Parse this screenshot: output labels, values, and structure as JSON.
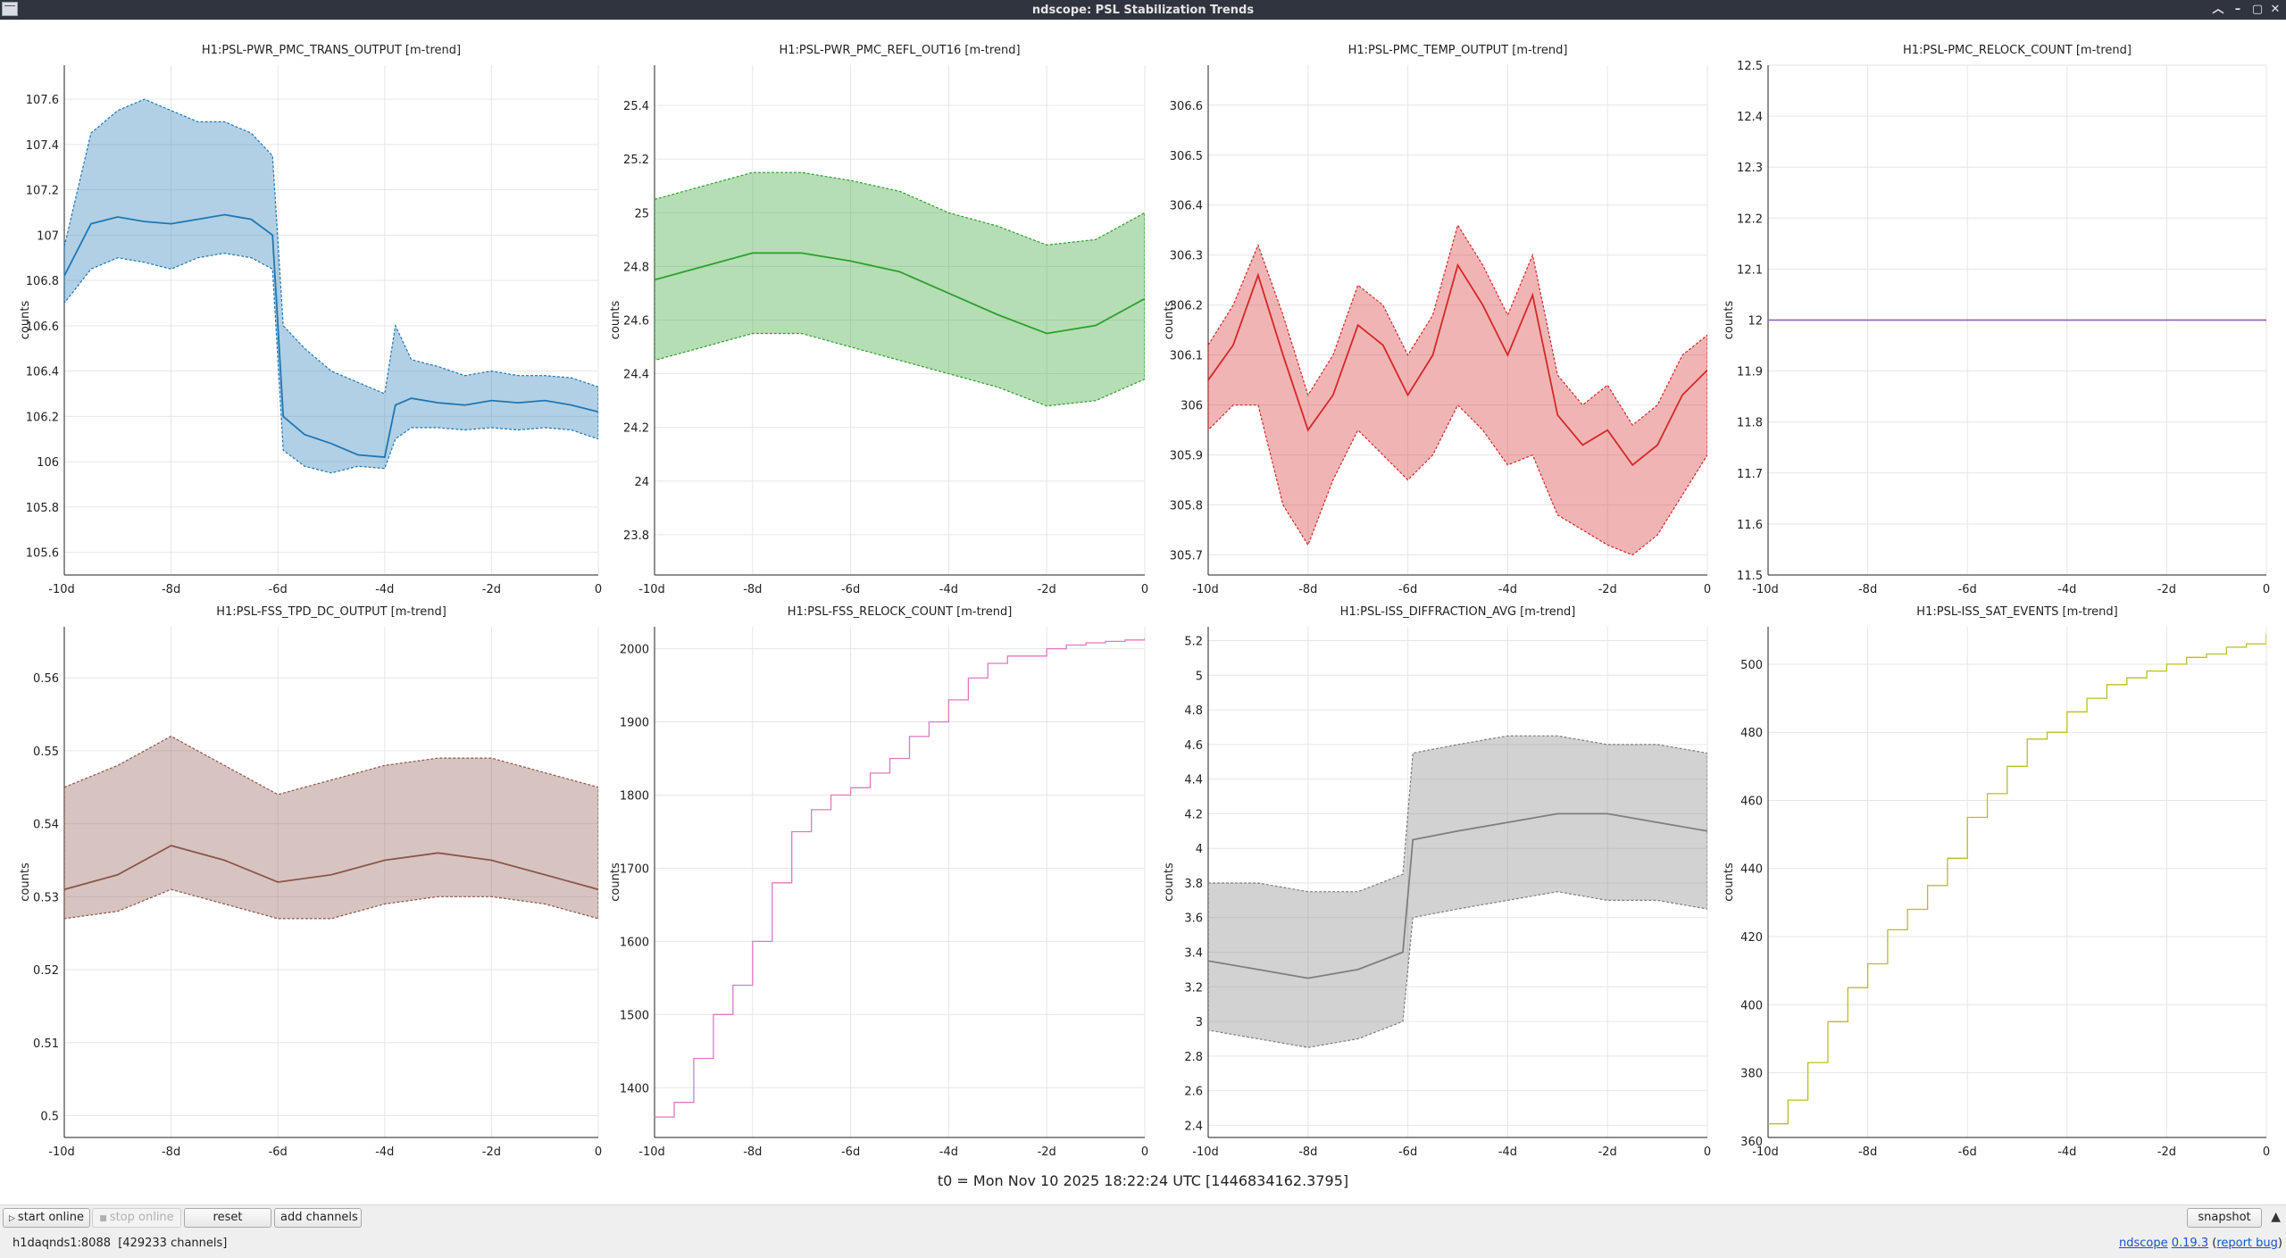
{
  "window": {
    "title": "ndscope: PSL Stabilization Trends",
    "buttons": [
      "︿",
      "–",
      "▢",
      "✕"
    ]
  },
  "colors": {
    "blue": "#1f77b4",
    "green": "#2ca02c",
    "red": "#d62728",
    "purple": "#9467bd",
    "brown": "#8c564b",
    "pink": "#e377c2",
    "gray": "#7f7f7f",
    "olive": "#bcbd22",
    "grid": "#e6e6e6",
    "axis": "#222222"
  },
  "x_ticks": [
    "-10d",
    "-8d",
    "-6d",
    "-4d",
    "-2d",
    "0"
  ],
  "chart_data": [
    {
      "type": "line",
      "title": "H1:PSL-PWR_PMC_TRANS_OUTPUT [m-trend]",
      "ylabel": "counts",
      "color": "blue",
      "xlim": [
        -10,
        0
      ],
      "ylim": [
        105.5,
        107.75
      ],
      "yticks": [
        105.6,
        105.8,
        106,
        106.2,
        106.4,
        106.6,
        106.8,
        107,
        107.2,
        107.4,
        107.6
      ],
      "x": [
        -10,
        -9.5,
        -9,
        -8.5,
        -8,
        -7.5,
        -7,
        -6.5,
        -6.1,
        -5.9,
        -5.5,
        -5,
        -4.5,
        -4,
        -3.8,
        -3.5,
        -3,
        -2.5,
        -2,
        -1.5,
        -1,
        -0.5,
        0
      ],
      "mean": [
        106.82,
        107.05,
        107.08,
        107.06,
        107.05,
        107.07,
        107.09,
        107.07,
        107.0,
        106.2,
        106.12,
        106.08,
        106.03,
        106.02,
        106.25,
        106.28,
        106.26,
        106.25,
        106.27,
        106.26,
        106.27,
        106.25,
        106.22
      ],
      "max": [
        106.95,
        107.45,
        107.55,
        107.6,
        107.55,
        107.5,
        107.5,
        107.45,
        107.35,
        106.6,
        106.5,
        106.4,
        106.35,
        106.3,
        106.6,
        106.45,
        106.42,
        106.38,
        106.4,
        106.38,
        106.38,
        106.37,
        106.33
      ],
      "min": [
        106.7,
        106.85,
        106.9,
        106.88,
        106.85,
        106.9,
        106.92,
        106.9,
        106.85,
        106.05,
        105.98,
        105.95,
        105.98,
        105.97,
        106.1,
        106.15,
        106.15,
        106.14,
        106.15,
        106.14,
        106.15,
        106.14,
        106.1
      ]
    },
    {
      "type": "line",
      "title": "H1:PSL-PWR_PMC_REFL_OUT16 [m-trend]",
      "ylabel": "counts",
      "color": "green",
      "xlim": [
        -10,
        0
      ],
      "ylim": [
        23.65,
        25.55
      ],
      "yticks": [
        23.8,
        24,
        24.2,
        24.4,
        24.6,
        24.8,
        25,
        25.2,
        25.4
      ],
      "x": [
        -10,
        -9,
        -8,
        -7,
        -6,
        -5,
        -4,
        -3,
        -2,
        -1,
        0
      ],
      "mean": [
        24.75,
        24.8,
        24.85,
        24.85,
        24.82,
        24.78,
        24.7,
        24.62,
        24.55,
        24.58,
        24.68
      ],
      "max": [
        25.05,
        25.1,
        25.15,
        25.15,
        25.12,
        25.08,
        25.0,
        24.95,
        24.88,
        24.9,
        25.0
      ],
      "min": [
        24.45,
        24.5,
        24.55,
        24.55,
        24.5,
        24.45,
        24.4,
        24.35,
        24.28,
        24.3,
        24.38
      ]
    },
    {
      "type": "line",
      "title": "H1:PSL-PMC_TEMP_OUTPUT [m-trend]",
      "ylabel": "counts",
      "color": "red",
      "xlim": [
        -10,
        0
      ],
      "ylim": [
        305.66,
        306.68
      ],
      "yticks": [
        305.7,
        305.8,
        305.9,
        306,
        306.1,
        306.2,
        306.3,
        306.4,
        306.5,
        306.6
      ],
      "x": [
        -10,
        -9.5,
        -9,
        -8.5,
        -8,
        -7.5,
        -7,
        -6.5,
        -6,
        -5.5,
        -5,
        -4.5,
        -4,
        -3.5,
        -3,
        -2.5,
        -2,
        -1.5,
        -1,
        -0.5,
        0
      ],
      "mean": [
        306.05,
        306.12,
        306.26,
        306.1,
        305.95,
        306.02,
        306.16,
        306.12,
        306.02,
        306.1,
        306.28,
        306.2,
        306.1,
        306.22,
        305.98,
        305.92,
        305.95,
        305.88,
        305.92,
        306.02,
        306.07
      ],
      "max": [
        306.12,
        306.2,
        306.32,
        306.18,
        306.02,
        306.1,
        306.24,
        306.2,
        306.1,
        306.18,
        306.36,
        306.28,
        306.18,
        306.3,
        306.06,
        306.0,
        306.04,
        305.96,
        306.0,
        306.1,
        306.14
      ],
      "min": [
        305.95,
        306.0,
        306.0,
        305.8,
        305.72,
        305.85,
        305.95,
        305.9,
        305.85,
        305.9,
        306.0,
        305.95,
        305.88,
        305.9,
        305.78,
        305.75,
        305.72,
        305.7,
        305.74,
        305.82,
        305.9
      ]
    },
    {
      "type": "line",
      "title": "H1:PSL-PMC_RELOCK_COUNT [m-trend]",
      "ylabel": "counts",
      "color": "purple",
      "xlim": [
        -10,
        0
      ],
      "ylim": [
        11.5,
        12.5
      ],
      "yticks": [
        11.5,
        11.6,
        11.7,
        11.8,
        11.9,
        12,
        12.1,
        12.2,
        12.3,
        12.4,
        12.5
      ],
      "x": [
        -10,
        0
      ],
      "mean": [
        12,
        12
      ]
    },
    {
      "type": "line",
      "title": "H1:PSL-FSS_TPD_DC_OUTPUT [m-trend]",
      "ylabel": "counts",
      "color": "brown",
      "xlim": [
        -10,
        0
      ],
      "ylim": [
        0.497,
        0.567
      ],
      "yticks": [
        0.5,
        0.51,
        0.52,
        0.53,
        0.54,
        0.55,
        0.56
      ],
      "x": [
        -10,
        -9,
        -8,
        -7,
        -6,
        -5,
        -4,
        -3,
        -2,
        -1,
        0
      ],
      "mean": [
        0.531,
        0.533,
        0.537,
        0.535,
        0.532,
        0.533,
        0.535,
        0.536,
        0.535,
        0.533,
        0.531
      ],
      "max": [
        0.545,
        0.548,
        0.552,
        0.548,
        0.544,
        0.546,
        0.548,
        0.549,
        0.549,
        0.547,
        0.545
      ],
      "min": [
        0.527,
        0.528,
        0.531,
        0.529,
        0.527,
        0.527,
        0.529,
        0.53,
        0.53,
        0.529,
        0.527
      ]
    },
    {
      "type": "line",
      "step": true,
      "title": "H1:PSL-FSS_RELOCK_COUNT [m-trend]",
      "ylabel": "counts",
      "color": "pink",
      "xlim": [
        -10,
        0
      ],
      "ylim": [
        1332,
        2030
      ],
      "yticks": [
        1400,
        1500,
        1600,
        1700,
        1800,
        1900,
        2000
      ],
      "x": [
        -10,
        -9.6,
        -9.2,
        -8.8,
        -8.4,
        -8.0,
        -7.6,
        -7.2,
        -6.8,
        -6.4,
        -6.0,
        -5.6,
        -5.2,
        -4.8,
        -4.4,
        -4.0,
        -3.6,
        -3.2,
        -2.8,
        -2.4,
        -2.0,
        -1.6,
        -1.2,
        -0.8,
        -0.4,
        0
      ],
      "mean": [
        1360,
        1380,
        1440,
        1500,
        1540,
        1600,
        1680,
        1750,
        1780,
        1800,
        1810,
        1830,
        1850,
        1880,
        1900,
        1930,
        1960,
        1980,
        1990,
        1990,
        2000,
        2005,
        2008,
        2010,
        2012,
        2015
      ]
    },
    {
      "type": "line",
      "title": "H1:PSL-ISS_DIFFRACTION_AVG [m-trend]",
      "ylabel": "counts",
      "color": "gray",
      "xlim": [
        -10,
        0
      ],
      "ylim": [
        2.33,
        5.28
      ],
      "yticks": [
        2.4,
        2.6,
        2.8,
        3,
        3.2,
        3.4,
        3.6,
        3.8,
        4,
        4.2,
        4.4,
        4.6,
        4.8,
        5,
        5.2
      ],
      "x": [
        -10,
        -9,
        -8,
        -7,
        -6.1,
        -5.9,
        -5,
        -4,
        -3,
        -2,
        -1,
        0
      ],
      "mean": [
        3.35,
        3.3,
        3.25,
        3.3,
        3.4,
        4.05,
        4.1,
        4.15,
        4.2,
        4.2,
        4.15,
        4.1
      ],
      "max": [
        3.8,
        3.8,
        3.75,
        3.75,
        3.85,
        4.55,
        4.6,
        4.65,
        4.65,
        4.6,
        4.6,
        4.55
      ],
      "min": [
        2.95,
        2.9,
        2.85,
        2.9,
        3.0,
        3.6,
        3.65,
        3.7,
        3.75,
        3.7,
        3.7,
        3.65
      ]
    },
    {
      "type": "line",
      "step": true,
      "title": "H1:PSL-ISS_SAT_EVENTS [m-trend]",
      "ylabel": "counts",
      "color": "olive",
      "xlim": [
        -10,
        0
      ],
      "ylim": [
        361,
        511
      ],
      "yticks": [
        360,
        380,
        400,
        420,
        440,
        460,
        480,
        500
      ],
      "x": [
        -10,
        -9.6,
        -9.2,
        -8.8,
        -8.4,
        -8.0,
        -7.6,
        -7.2,
        -6.8,
        -6.4,
        -6.0,
        -5.6,
        -5.2,
        -4.8,
        -4.4,
        -4.0,
        -3.6,
        -3.2,
        -2.8,
        -2.4,
        -2.0,
        -1.6,
        -1.2,
        -0.8,
        -0.4,
        0
      ],
      "mean": [
        365,
        372,
        383,
        395,
        405,
        412,
        422,
        428,
        435,
        443,
        455,
        462,
        470,
        478,
        480,
        486,
        490,
        494,
        496,
        498,
        500,
        502,
        503,
        505,
        506,
        509
      ]
    }
  ],
  "t0_label": "t0 = Mon Nov 10 2025 18:22:24 UTC [1446834162.3795]",
  "toolbar": {
    "start_online": "start online",
    "stop_online": "stop online",
    "reset": "reset",
    "add_channels": "add channels",
    "snapshot": "snapshot",
    "expand": "▲"
  },
  "status": {
    "server": "h1daqnds1:8088",
    "channels": "[429233 channels]",
    "ndscope_link": "ndscope",
    "version": "0.19.3",
    "report_bug": "report bug"
  }
}
